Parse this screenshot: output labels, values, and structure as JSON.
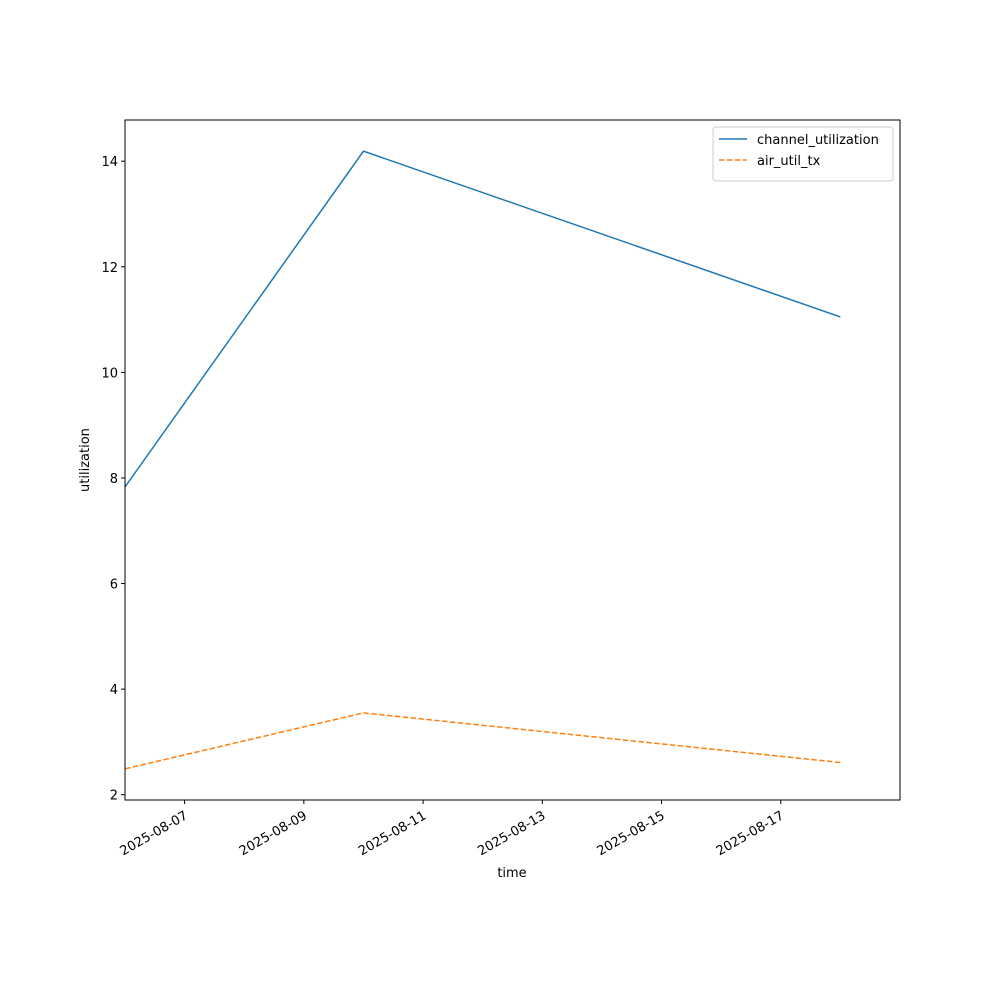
{
  "chart_data": {
    "type": "line",
    "x_label": "time",
    "y_label": "utilization",
    "x": [
      "2025-08-06",
      "2025-08-10",
      "2025-08-18"
    ],
    "xlim": [
      "2025-08-06",
      "2025-08-19"
    ],
    "xticks": [
      "2025-08-07",
      "2025-08-09",
      "2025-08-11",
      "2025-08-13",
      "2025-08-15",
      "2025-08-17"
    ],
    "ylim": [
      1.9,
      14.78
    ],
    "yticks": [
      2,
      4,
      6,
      8,
      10,
      12,
      14
    ],
    "legend": "upper right",
    "series": [
      {
        "name": "channel_utilization",
        "color": "#1f77b4",
        "linestyle": "solid",
        "values": [
          7.83,
          14.19,
          11.05
        ]
      },
      {
        "name": "air_util_tx",
        "color": "#ff7f0e",
        "linestyle": "dashed",
        "values": [
          2.49,
          3.55,
          2.61
        ]
      }
    ]
  }
}
